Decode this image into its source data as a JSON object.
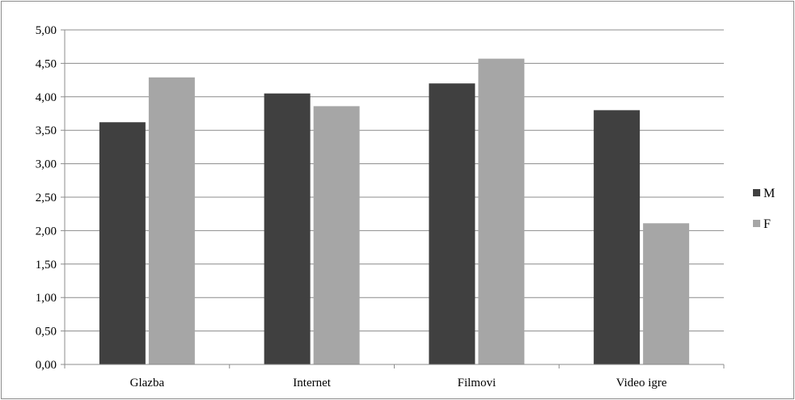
{
  "chart_data": {
    "type": "bar",
    "title": "",
    "xlabel": "",
    "ylabel": "",
    "categories": [
      "Glazba",
      "Internet",
      "Filmovi",
      "Video igre"
    ],
    "series": [
      {
        "name": "M",
        "values": [
          3.62,
          4.05,
          4.2,
          3.8
        ],
        "color": "#404040"
      },
      {
        "name": "F",
        "values": [
          4.29,
          3.86,
          4.57,
          2.11
        ],
        "color": "#a6a6a6"
      }
    ],
    "ylim": [
      0,
      5
    ],
    "ytick_step": 0.5,
    "ytick_labels": [
      "0,00",
      "0,50",
      "1,00",
      "1,50",
      "2,00",
      "2,50",
      "3,00",
      "3,50",
      "4,00",
      "4,50",
      "5,00"
    ],
    "grid": true,
    "legend": "right"
  }
}
